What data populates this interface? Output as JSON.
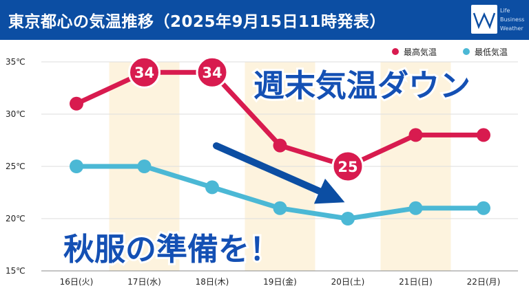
{
  "header": {
    "title": "東京都心の気温推移（2025年9月15日11時発表）",
    "logo_lines": [
      "Life",
      "Business",
      "Weather"
    ]
  },
  "banner": {
    "main": "週末気温ダウン",
    "sub": "秋服の準備を！"
  },
  "colors": {
    "header_bg": "#0c4ea3",
    "max_series": "#d81b4f",
    "min_series": "#4bb8d5",
    "weekend_shade": "#fdf3de",
    "arrow": "#0c4ea3",
    "banner_text": "#1450b4"
  },
  "chart_data": {
    "type": "line",
    "categories": [
      "16日(火)",
      "17日(水)",
      "18日(木)",
      "19日(金)",
      "20日(土)",
      "21日(日)",
      "22日(月)"
    ],
    "series": [
      {
        "name": "最高気温",
        "values": [
          31,
          34,
          34,
          27,
          25,
          28,
          28
        ]
      },
      {
        "name": "最低気温",
        "values": [
          25,
          25,
          23,
          21,
          20,
          21,
          21
        ]
      }
    ],
    "highlighted_labels": [
      {
        "series": "最高気温",
        "index": 1,
        "label": "34"
      },
      {
        "series": "最高気温",
        "index": 2,
        "label": "34"
      },
      {
        "series": "最高気温",
        "index": 4,
        "label": "25"
      }
    ],
    "shaded_categories": [
      1,
      3,
      5
    ],
    "ylim": [
      15,
      35
    ],
    "y_ticks": [
      "15℃",
      "20℃",
      "25℃",
      "30℃",
      "35℃"
    ],
    "legend_position": "top-right",
    "grid": true
  }
}
